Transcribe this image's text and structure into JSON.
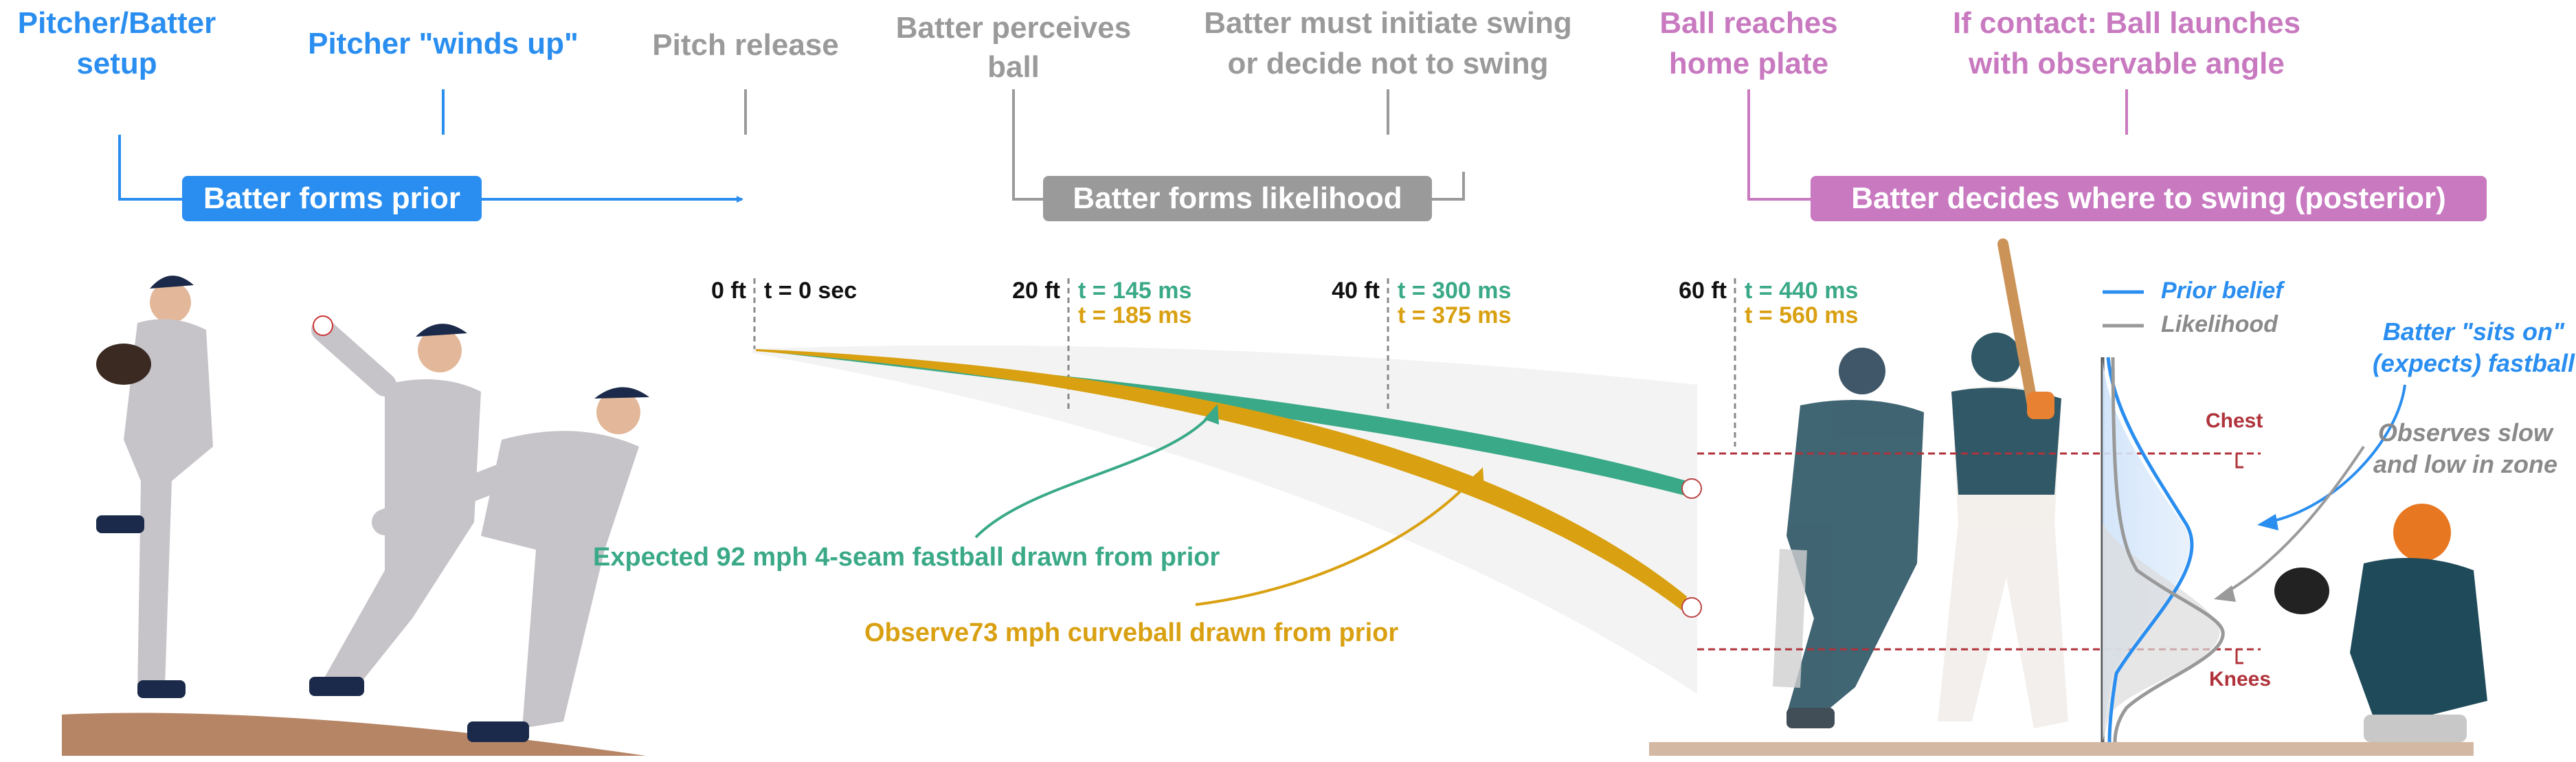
{
  "colors": {
    "blue": "#2a8ef0",
    "gray": "#9a9a9a",
    "pink": "#c879c0",
    "green": "#3aa987",
    "gold": "#d9a011",
    "red": "#b0323a",
    "dark": "#111111"
  },
  "timeline": {
    "events": [
      {
        "lines": [
          "Pitcher/Batter",
          "setup"
        ],
        "color": "blue"
      },
      {
        "lines": [
          "Pitcher \"winds up\""
        ],
        "color": "blue"
      },
      {
        "lines": [
          "Pitch release"
        ],
        "color": "gray"
      },
      {
        "lines": [
          "Batter perceives",
          "ball"
        ],
        "color": "gray"
      },
      {
        "lines": [
          "Batter must initiate swing",
          "or decide not to swing"
        ],
        "color": "gray"
      },
      {
        "lines": [
          "Ball reaches",
          "home plate"
        ],
        "color": "pink"
      },
      {
        "lines": [
          "If contact: Ball launches",
          "with observable angle"
        ],
        "color": "pink"
      }
    ],
    "phases": {
      "prior": "Batter forms prior",
      "likelihood": "Batter forms likelihood",
      "posterior": "Batter decides where to swing (posterior)"
    }
  },
  "distances": [
    {
      "ft": "0 ft",
      "t_single": "t = 0 sec"
    },
    {
      "ft": "20 ft",
      "t_fast": "t = 145 ms",
      "t_curve": "t = 185 ms"
    },
    {
      "ft": "40 ft",
      "t_fast": "t = 300 ms",
      "t_curve": "t = 375 ms"
    },
    {
      "ft": "60 ft",
      "t_fast": "t = 440 ms",
      "t_curve": "t = 560 ms"
    }
  ],
  "pitches": {
    "fastball": "Expected 92 mph 4-seam fastball drawn from prior",
    "curveball": "Observe73 mph curveball drawn from prior"
  },
  "legend": {
    "prior": "Prior belief",
    "likelihood": "Likelihood"
  },
  "annotations": {
    "sits_on": [
      "Batter \"sits on\"",
      "(expects) fastball"
    ],
    "observes": [
      "Observes slow",
      "and low in zone"
    ],
    "chest": "Chest",
    "knees": "Knees"
  }
}
